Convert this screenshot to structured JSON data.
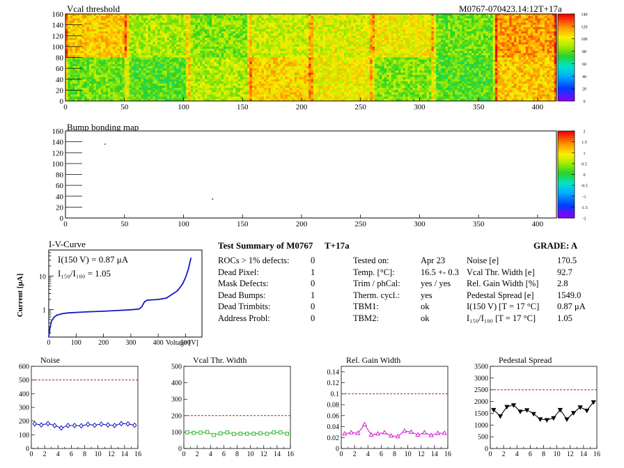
{
  "header": {
    "run_id": "M0767-070423.14:12T+17a"
  },
  "chart_data": [
    {
      "id": "vcal_threshold",
      "type": "heatmap",
      "title": "Vcal threshold",
      "xlabel": "",
      "ylabel": "",
      "xlim": [
        0,
        416
      ],
      "ylim": [
        0,
        160
      ],
      "xticks": [
        "0",
        "50",
        "100",
        "150",
        "200",
        "250",
        "300",
        "350",
        "400"
      ],
      "yticks": [
        "0",
        "20",
        "40",
        "60",
        "80",
        "100",
        "120",
        "140",
        "160"
      ],
      "colorbar": {
        "range": [
          0,
          140
        ],
        "ticks": [
          "0",
          "20",
          "40",
          "60",
          "80",
          "100",
          "120",
          "140"
        ]
      },
      "roc_mean_upper": [
        110,
        90,
        85,
        95,
        98,
        102,
        82,
        118
      ],
      "roc_mean_lower": [
        82,
        78,
        92,
        108,
        102,
        85,
        78,
        110
      ]
    },
    {
      "id": "bump_bonding_map",
      "type": "heatmap",
      "title": "Bump bonding map",
      "xlabel": "",
      "ylabel": "",
      "xlim": [
        0,
        416
      ],
      "ylim": [
        0,
        160
      ],
      "xticks": [
        "0",
        "50",
        "100",
        "150",
        "200",
        "250",
        "300",
        "350",
        "400"
      ],
      "yticks": [
        "0",
        "20",
        "40",
        "60",
        "80",
        "100",
        "120",
        "140",
        "160"
      ],
      "colorbar": {
        "range": [
          -2,
          2
        ],
        "ticks": [
          "-2",
          "-1.5",
          "-1",
          "-0.5",
          "0",
          "0.5",
          "1",
          "1.5",
          "2"
        ]
      },
      "points": [
        {
          "x": 33,
          "y": 137
        },
        {
          "x": 124,
          "y": 36
        }
      ]
    },
    {
      "id": "iv_curve",
      "type": "line",
      "title": "I-V-Curve",
      "xlabel": "Voltage [V]",
      "ylabel": "Current [μA]",
      "xlim": [
        0,
        560
      ],
      "ylim": [
        0.15,
        60
      ],
      "yscale": "log",
      "xticks": [
        "0",
        "100",
        "200",
        "300",
        "400",
        "500"
      ],
      "yticks": [
        "1",
        "10"
      ],
      "annotation_current": "I(150 V) = 0.87 μA",
      "annotation_ratio": "I₁₅₀/I₁₀₀ =  1.05",
      "x": [
        0,
        5,
        10,
        20,
        30,
        50,
        70,
        100,
        150,
        200,
        250,
        300,
        330,
        340,
        350,
        360,
        400,
        430,
        450,
        470,
        480,
        490,
        500,
        510,
        520
      ],
      "y": [
        0.15,
        0.3,
        0.45,
        0.6,
        0.68,
        0.75,
        0.79,
        0.82,
        0.86,
        0.89,
        0.93,
        0.98,
        1.03,
        1.2,
        1.7,
        1.9,
        2.0,
        2.2,
        2.8,
        3.6,
        4.6,
        6.0,
        9.0,
        16,
        35
      ]
    },
    {
      "id": "noise",
      "type": "line",
      "title": "Noise",
      "xlim": [
        0,
        16
      ],
      "ylim": [
        0,
        600
      ],
      "xticks": [
        "0",
        "2",
        "4",
        "6",
        "8",
        "10",
        "12",
        "14",
        "16"
      ],
      "yticks": [
        "0",
        "100",
        "200",
        "300",
        "400",
        "500",
        "600"
      ],
      "limit": 500,
      "x": [
        0.5,
        1.5,
        2.5,
        3.5,
        4.5,
        5.5,
        6.5,
        7.5,
        8.5,
        9.5,
        10.5,
        11.5,
        12.5,
        13.5,
        14.5,
        15.5
      ],
      "y": [
        180,
        172,
        182,
        168,
        150,
        168,
        168,
        166,
        176,
        170,
        178,
        172,
        168,
        182,
        180,
        170
      ],
      "color": "#1414c8",
      "marker": "diamond"
    },
    {
      "id": "vcal_thr_width",
      "type": "line",
      "title": "Vcal Thr. Width",
      "xlim": [
        0,
        16
      ],
      "ylim": [
        0,
        500
      ],
      "xticks": [
        "0",
        "2",
        "4",
        "6",
        "8",
        "10",
        "12",
        "14",
        "16"
      ],
      "yticks": [
        "0",
        "100",
        "200",
        "300",
        "400",
        "500"
      ],
      "limit": 200,
      "x": [
        0.5,
        1.5,
        2.5,
        3.5,
        4.5,
        5.5,
        6.5,
        7.5,
        8.5,
        9.5,
        10.5,
        11.5,
        12.5,
        13.5,
        14.5,
        15.5
      ],
      "y": [
        98,
        95,
        97,
        100,
        82,
        92,
        98,
        88,
        90,
        90,
        90,
        92,
        90,
        98,
        98,
        90
      ],
      "color": "#33b533",
      "marker": "square"
    },
    {
      "id": "rel_gain_width",
      "type": "line",
      "title": "Rel. Gain Width",
      "xlim": [
        0,
        16
      ],
      "ylim": [
        0,
        0.15
      ],
      "xticks": [
        "0",
        "2",
        "4",
        "6",
        "8",
        "10",
        "12",
        "14",
        "16"
      ],
      "yticks": [
        "0",
        "0.02",
        "0.04",
        "0.06",
        "0.08",
        "0.1",
        "0.12",
        "0.14"
      ],
      "limit": 0.1,
      "x": [
        0.5,
        1.5,
        2.5,
        3.5,
        4.5,
        5.5,
        6.5,
        7.5,
        8.5,
        9.5,
        10.5,
        11.5,
        12.5,
        13.5,
        14.5,
        15.5
      ],
      "y": [
        0.027,
        0.029,
        0.028,
        0.044,
        0.025,
        0.027,
        0.029,
        0.023,
        0.022,
        0.032,
        0.03,
        0.025,
        0.029,
        0.024,
        0.028,
        0.028
      ],
      "color": "#d61ed6",
      "marker": "triangle-up"
    },
    {
      "id": "pedestal_spread",
      "type": "line",
      "title": "Pedestal Spread",
      "xlim": [
        0,
        16
      ],
      "ylim": [
        0,
        3500
      ],
      "xticks": [
        "0",
        "2",
        "4",
        "6",
        "8",
        "10",
        "12",
        "14",
        "16"
      ],
      "yticks": [
        "0",
        "500",
        "1000",
        "1500",
        "2000",
        "2500",
        "3000",
        "3500"
      ],
      "limit": 2500,
      "x": [
        0.5,
        1.5,
        2.5,
        3.5,
        4.5,
        5.5,
        6.5,
        7.5,
        8.5,
        9.5,
        10.5,
        11.5,
        12.5,
        13.5,
        14.5,
        15.5
      ],
      "y": [
        1650,
        1380,
        1780,
        1850,
        1580,
        1640,
        1480,
        1250,
        1220,
        1300,
        1650,
        1250,
        1520,
        1760,
        1620,
        1980
      ],
      "color": "#000000",
      "marker": "triangle-down"
    }
  ],
  "summary": {
    "title": "Test Summary of M0767",
    "tag": "T+17a",
    "grade_label": "GRADE:  A",
    "defects": [
      {
        "label": "ROCs > 1% defects:",
        "value": "0"
      },
      {
        "label": "Dead Pixel:",
        "value": "1"
      },
      {
        "label": "Mask Defects:",
        "value": "0"
      },
      {
        "label": "Dead Bumps:",
        "value": "1"
      },
      {
        "label": "Dead Trimbits:",
        "value": "0"
      },
      {
        "label": "Address Probl:",
        "value": "0"
      }
    ],
    "conditions": [
      {
        "label": "Tested on:",
        "value": "Apr 23"
      },
      {
        "label": "Temp. [°C]:",
        "value": "16.5 +- 0.3"
      },
      {
        "label": "Trim / phCal:",
        "value": "yes / yes"
      },
      {
        "label": "Therm. cycl.:",
        "value": "yes"
      },
      {
        "label": "TBM1:",
        "value": "ok"
      },
      {
        "label": "TBM2:",
        "value": "ok"
      }
    ],
    "results": [
      {
        "label": "Noise [e]",
        "value": "170.5"
      },
      {
        "label": "Vcal Thr. Width [e]",
        "value": "92.7"
      },
      {
        "label": "Rel. Gain Width [%]",
        "value": "2.8"
      },
      {
        "label": "Pedestal Spread [e]",
        "value": "1549.0"
      },
      {
        "label": "I(150 V) [T = 17 °C]",
        "value": "0.87 μA"
      },
      {
        "label": "I₁₅₀/I₁₀₀  [T = 17 °C]",
        "value": "1.05"
      }
    ]
  }
}
